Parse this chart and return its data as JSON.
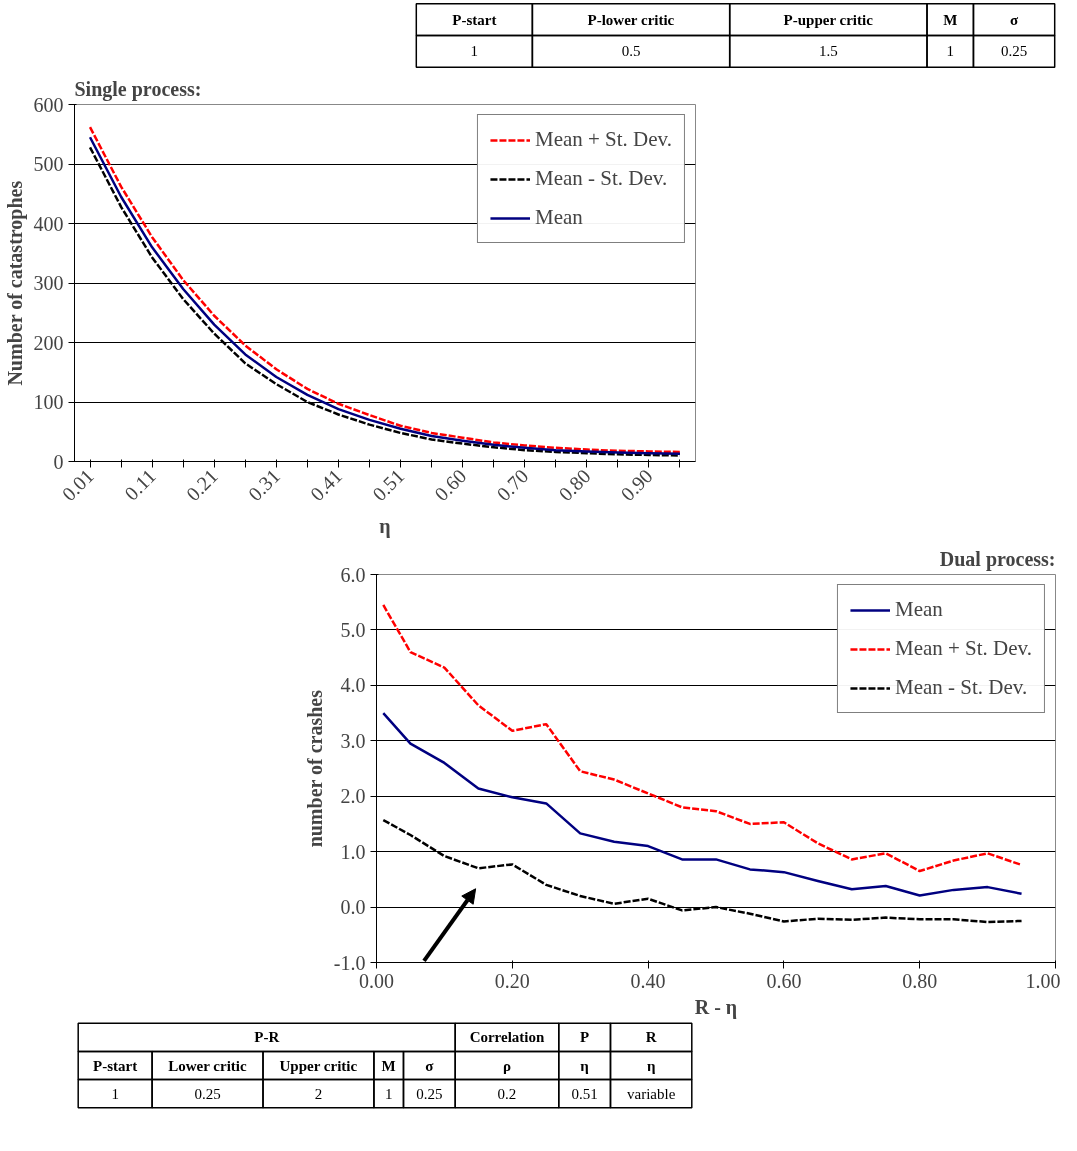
{
  "chart_data": [
    {
      "type": "other",
      "categories": [
        "P-start",
        "P-lower critic",
        "P-upper critic",
        "M",
        "σ"
      ],
      "values": [
        1,
        0.5,
        1.5,
        1,
        0.25
      ],
      "data_labels": true
    },
    {
      "type": "line",
      "title": "Single process:",
      "xlabel": "η",
      "ylabel": "Number of catastrophes",
      "categories": [
        "0.01",
        null,
        "0.11",
        null,
        "0.21",
        null,
        "0.31",
        null,
        "0.41",
        null,
        "0.51",
        null,
        "0.60",
        null,
        "0.70",
        null,
        "0.80",
        null,
        "0.90",
        null
      ],
      "series": [
        {
          "name": "Mean + St. Dev.",
          "color": "#ff0000",
          "line_style": "dashed",
          "values": [
            562,
            462,
            377,
            305,
            245,
            195,
            155,
            122,
            97,
            78,
            60,
            48,
            40,
            32,
            27,
            23,
            20,
            18,
            17,
            16
          ]
        },
        {
          "name": "Mean - St. Dev.",
          "color": "#000000",
          "line_style": "dashed",
          "values": [
            528,
            428,
            343,
            273,
            215,
            165,
            130,
            100,
            79,
            62,
            48,
            37,
            30,
            24,
            19,
            16,
            14,
            12,
            11,
            10
          ]
        },
        {
          "name": "Mean",
          "color": "#000080",
          "line_style": "solid",
          "values": [
            545,
            445,
            360,
            290,
            230,
            180,
            142,
            112,
            88,
            70,
            55,
            43,
            35,
            28,
            23,
            19,
            17,
            15,
            14,
            13
          ]
        }
      ],
      "ylim": [
        0,
        600
      ],
      "yticks": [
        0,
        100,
        200,
        300,
        400,
        500,
        600
      ],
      "grid": "y",
      "legend": "top right"
    },
    {
      "type": "line",
      "title": "Dual process:",
      "xlabel": "R - η",
      "ylabel": "number of crashes",
      "x": [
        0.01,
        0.05,
        0.1,
        0.15,
        0.2,
        0.25,
        0.3,
        0.35,
        0.4,
        0.45,
        0.5,
        0.55,
        0.6,
        0.65,
        0.7,
        0.75,
        0.8,
        0.85,
        0.9,
        0.95
      ],
      "series": [
        {
          "name": "Mean",
          "color": "#000080",
          "line_style": "solid",
          "values": [
            3.5,
            2.95,
            2.6,
            2.14,
            1.98,
            1.87,
            1.33,
            1.18,
            1.1,
            0.86,
            0.86,
            0.68,
            0.63,
            0.47,
            0.32,
            0.38,
            0.21,
            0.31,
            0.36,
            0.24
          ]
        },
        {
          "name": "Mean + St. Dev.",
          "color": "#ff0000",
          "line_style": "dashed",
          "values": [
            5.45,
            4.6,
            4.32,
            3.64,
            3.18,
            3.3,
            2.45,
            2.3,
            2.05,
            1.8,
            1.73,
            1.5,
            1.53,
            1.15,
            0.86,
            0.97,
            0.65,
            0.84,
            0.97,
            0.76
          ]
        },
        {
          "name": "Mean - St. Dev.",
          "color": "#000000",
          "line_style": "dashed",
          "values": [
            1.57,
            1.3,
            0.92,
            0.7,
            0.77,
            0.4,
            0.2,
            0.06,
            0.15,
            -0.06,
            0.0,
            -0.12,
            -0.26,
            -0.21,
            -0.23,
            -0.19,
            -0.22,
            -0.22,
            -0.27,
            -0.25
          ]
        }
      ],
      "xlim": [
        0,
        1
      ],
      "xticks": [
        {
          "value": 0,
          "label": "0.00"
        },
        {
          "value": 0.2,
          "label": "0.20"
        },
        {
          "value": 0.4,
          "label": "0.40"
        },
        {
          "value": 0.6,
          "label": "0.60"
        },
        {
          "value": 0.8,
          "label": "0.80"
        },
        {
          "value": 1,
          "label": "1.00"
        }
      ],
      "ylim": [
        -1,
        6
      ],
      "yticks": [
        {
          "value": -1,
          "label": "-1.0"
        },
        {
          "value": 0,
          "label": "0.0"
        },
        {
          "value": 1,
          "label": "1.0"
        },
        {
          "value": 2,
          "label": "2.0"
        },
        {
          "value": 3,
          "label": "3.0"
        },
        {
          "value": 4,
          "label": "4.0"
        },
        {
          "value": 5,
          "label": "5.0"
        },
        {
          "value": 6,
          "label": "6.0"
        }
      ],
      "grid": "y",
      "legend": "top right"
    },
    {
      "type": "other",
      "annotations": [
        "P-R",
        "Correlation",
        "P",
        "R"
      ],
      "categories": [
        "P-start",
        "Lower critic",
        "Upper critic",
        "M",
        "σ",
        "ρ",
        "η",
        "η"
      ],
      "values": [
        1,
        0.25,
        2,
        1,
        0.25,
        0.2,
        0.51,
        null
      ],
      "value_labels": [
        "1",
        "0.25",
        "2",
        "1",
        "0.25",
        "0.2",
        "0.51",
        "variable"
      ]
    }
  ]
}
